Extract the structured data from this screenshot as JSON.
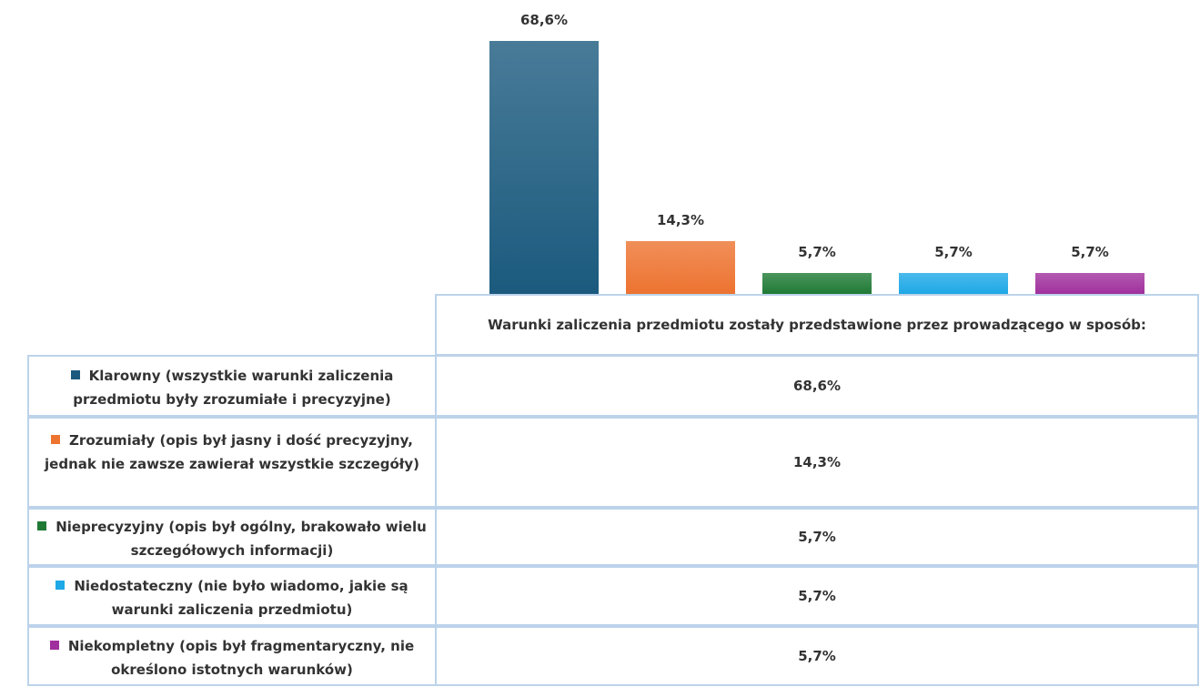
{
  "chart_data": {
    "type": "bar",
    "categories": [
      "Warunki zaliczenia przedmiotu zostały przedstawione przez prowadzącego w sposób:"
    ],
    "ylim": [
      0,
      70
    ],
    "series": [
      {
        "name": "Klarowny (wszystkie warunki zaliczenia przedmiotu były zrozumiałe i precyzyjne)",
        "color": "#1b5a7e",
        "values": [
          68.6
        ],
        "value_labels": [
          "68,6%"
        ]
      },
      {
        "name": "Zrozumiały (opis był jasny i dość precyzyjny, jednak nie zawsze zawierał wszystkie szczegóły)",
        "color": "#ed7330",
        "values": [
          14.3
        ],
        "value_labels": [
          "14,3%"
        ]
      },
      {
        "name": "Nieprecyzyjny (opis był ogólny, brakowało wielu szczegółowych informacji)",
        "color": "#1f7a35",
        "values": [
          5.7
        ],
        "value_labels": [
          "5,7%"
        ]
      },
      {
        "name": "Niedostateczny (nie było wiadomo, jakie są warunki zaliczenia przedmiotu)",
        "color": "#1ea8e6",
        "values": [
          5.7
        ],
        "value_labels": [
          "5,7%"
        ]
      },
      {
        "name": "Niekompletny (opis był fragmentaryczny, nie określono istotnych warunków)",
        "color": "#a0309d",
        "values": [
          5.7
        ],
        "value_labels": [
          "5,7%"
        ]
      }
    ]
  }
}
